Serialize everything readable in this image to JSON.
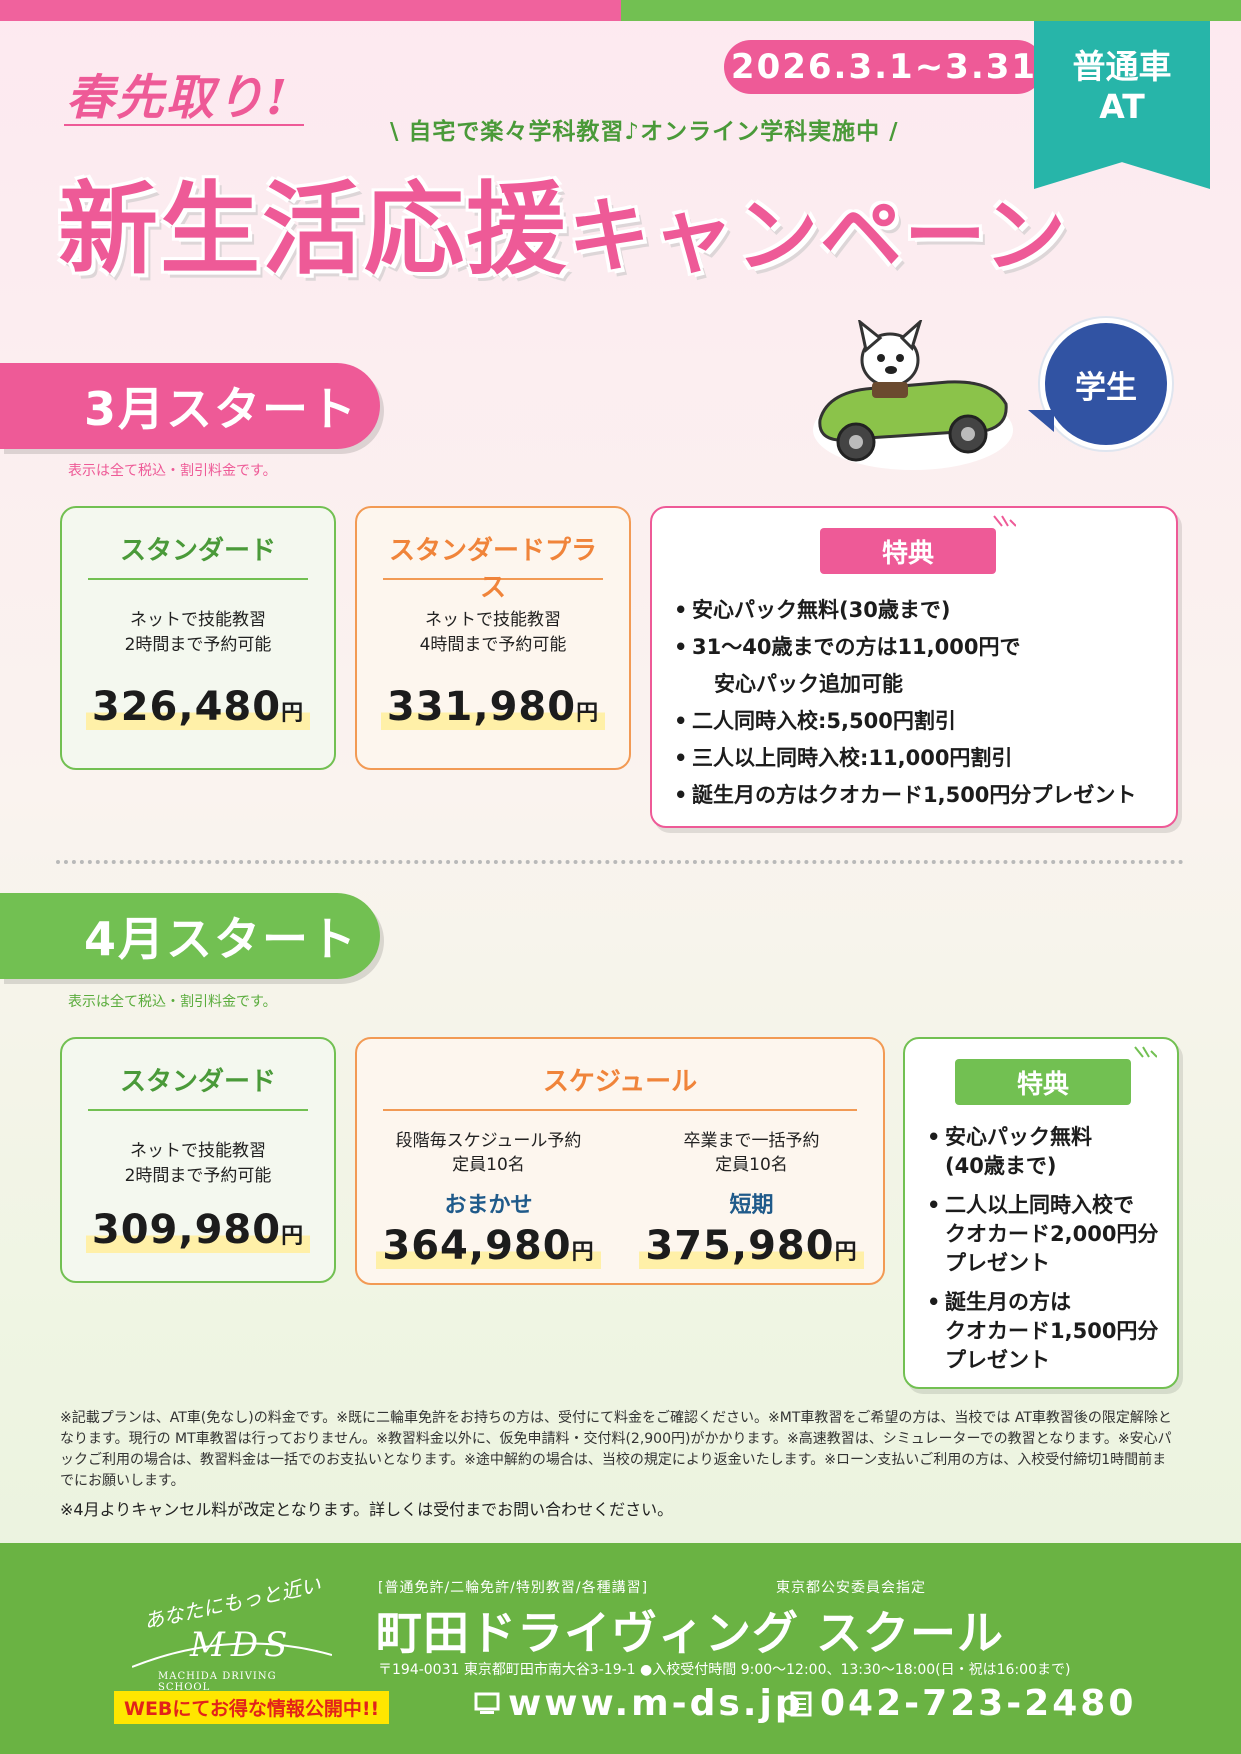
{
  "header": {
    "date_range": "2026.3.1~3.31",
    "ribbon_line1": "普通車",
    "ribbon_line2": "AT",
    "catchphrase": "春先取り!",
    "subhead": "\\ 自宅で楽々学科教習♪オンライン学科実施中 /",
    "title_main": "新生活応援",
    "title_tail": "キャンペーン"
  },
  "badge": {
    "label": "学生"
  },
  "march": {
    "tab_label": "3月スタート",
    "tax_note": "表示は全て税込・割引料金です。",
    "plans": [
      {
        "name": "スタンダード",
        "desc_line1": "ネットで技能教習",
        "desc_line2": "2時間まで予約可能",
        "price": "326,480",
        "unit": "円"
      },
      {
        "name": "スタンダードプラス",
        "desc_line1": "ネットで技能教習",
        "desc_line2": "4時間まで予約可能",
        "price": "331,980",
        "unit": "円"
      }
    ],
    "benefits": {
      "label": "特典",
      "items": [
        "安心パック無料(30歳まで)",
        "31～40歳までの方は11,000円で",
        "安心パック追加可能",
        "二人同時入校:5,500円割引",
        "三人以上同時入校:11,000円割引",
        "誕生月の方はクオカード1,500円分プレゼント"
      ]
    }
  },
  "april": {
    "tab_label": "4月スタート",
    "tax_note": "表示は全て税込・割引料金です。",
    "standard": {
      "name": "スタンダード",
      "desc_line1": "ネットで技能教習",
      "desc_line2": "2時間まで予約可能",
      "price": "309,980",
      "unit": "円"
    },
    "schedule": {
      "name": "スケジュール",
      "options": [
        {
          "desc_line1": "段階毎スケジュール予約",
          "desc_line2": "定員10名",
          "plan": "おまかせ",
          "price": "364,980",
          "unit": "円"
        },
        {
          "desc_line1": "卒業まで一括予約",
          "desc_line2": "定員10名",
          "plan": "短期",
          "price": "375,980",
          "unit": "円"
        }
      ]
    },
    "benefits": {
      "label": "特典",
      "items": [
        "安心パック無料",
        "(40歳まで)",
        "二人以上同時入校で",
        "クオカード2,000円分",
        "プレゼント",
        "誕生月の方は",
        "クオカード1,500円分",
        "プレゼント"
      ]
    }
  },
  "notes": {
    "fine_print": "※記載プランは、AT車(免なし)の料金です。※既に二輪車免許をお持ちの方は、受付にて料金をご確認ください。※MT車教習をご希望の方は、当校では AT車教習後の限定解除となります。現行の MT車教習は行っておりません。※教習料金以外に、仮免申請料・交付料(2,900円)がかかります。※高速教習は、シミュレーターでの教習となります。※安心パックご利用の場合は、教習料金は一括でのお支払いとなります。※途中解約の場合は、当校の規定により返金いたします。※ローン支払いご利用の方は、入校受付締切1時間前までにお願いします。",
    "cancel_note": "※4月よりキャンセル料が改定となります。詳しくは受付までお問い合わせください。"
  },
  "footer": {
    "logo_tagline": "あなたにもっと近い",
    "logo_text": "MDS",
    "logo_en": "MACHIDA DRIVING SCHOOL",
    "categories": "[普通免許/二輪免許/特別教習/各種講習]",
    "authority": "東京都公安委員会指定",
    "school_name": "町田ドライヴィング スクール",
    "address": "〒194-0031 東京都町田市南大谷3-19-1 ●入校受付時間 9:00～12:00、13:30～18:00(日・祝は16:00まで)",
    "web_badge": "WEBにてお得な情報公開中!!",
    "url": "www.m-ds.jp",
    "phone": "042-723-2480"
  },
  "colors": {
    "pink": "#ee5a97",
    "green": "#72c052",
    "teal": "#27b5a9",
    "navy": "#3153a3",
    "orange": "#f29a54"
  }
}
